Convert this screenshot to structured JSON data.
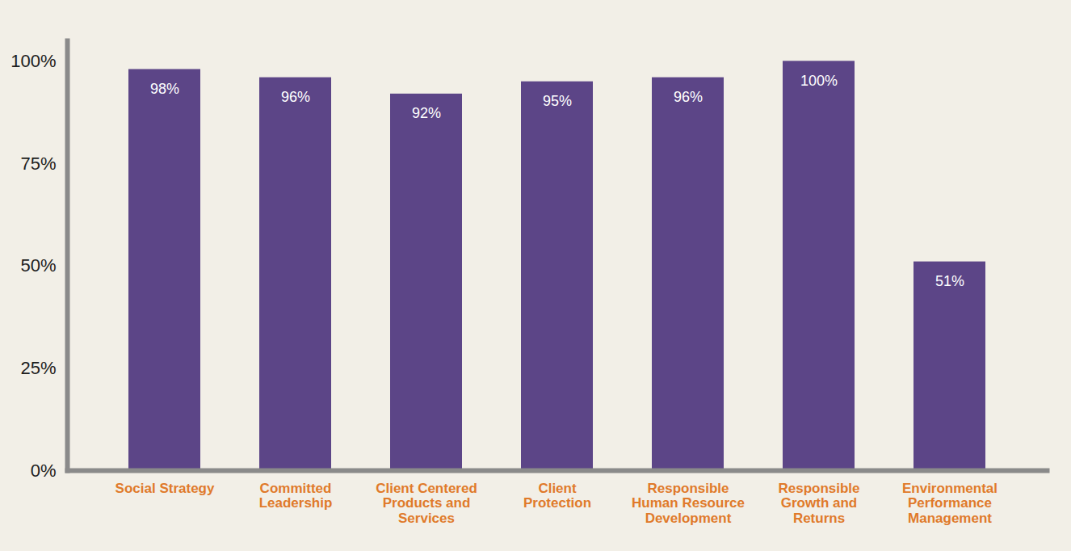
{
  "chart_data": {
    "type": "bar",
    "categories": [
      "Social Strategy",
      "Committed Leadership",
      "Client Centered Products and Services",
      "Client Protection",
      "Responsible Human Resource Development",
      "Responsible Growth and Returns",
      "Environmental Performance Management"
    ],
    "values": [
      98,
      96,
      92,
      95,
      96,
      100,
      51
    ],
    "value_labels": [
      "98%",
      "96%",
      "92%",
      "95%",
      "96%",
      "100%",
      "51%"
    ],
    "color": "#5c4587",
    "ylim": [
      0,
      105
    ],
    "yticks": [
      {
        "value": 0,
        "label": "0%"
      },
      {
        "value": 25,
        "label": "25%"
      },
      {
        "value": 50,
        "label": "50%"
      },
      {
        "value": 75,
        "label": "75%"
      },
      {
        "value": 100,
        "label": "100%"
      }
    ],
    "grid": false,
    "data_labels": true
  }
}
